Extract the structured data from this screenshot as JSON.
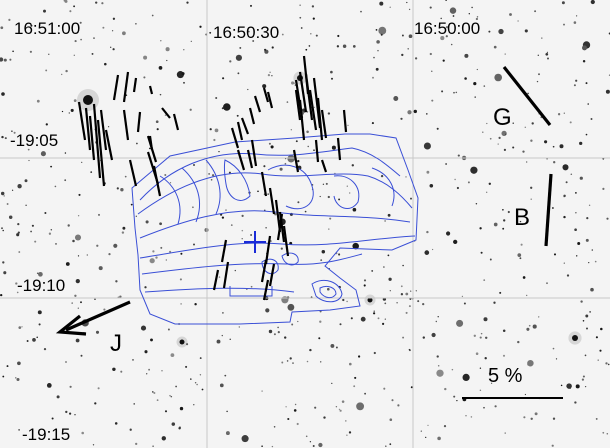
{
  "figure": {
    "ra_ticks": [
      "16:51:00",
      "16:50:30",
      "16:50:00"
    ],
    "dec_ticks": [
      "-19:05",
      "-19:10",
      "-19:15"
    ],
    "vector_labels": {
      "galactic": "G",
      "magnetic": "B",
      "jet": "J"
    },
    "scale_bar": {
      "label": "5 %"
    },
    "colors": {
      "contour": "#3a4fd6",
      "marker": "#1a2bd8",
      "vectors": "#000000",
      "grid": "#c8c8c8",
      "sky": "#f4f4f4"
    },
    "icons": {
      "center_marker": "plus-cross-icon",
      "jet_direction": "arrow-icon"
    }
  }
}
